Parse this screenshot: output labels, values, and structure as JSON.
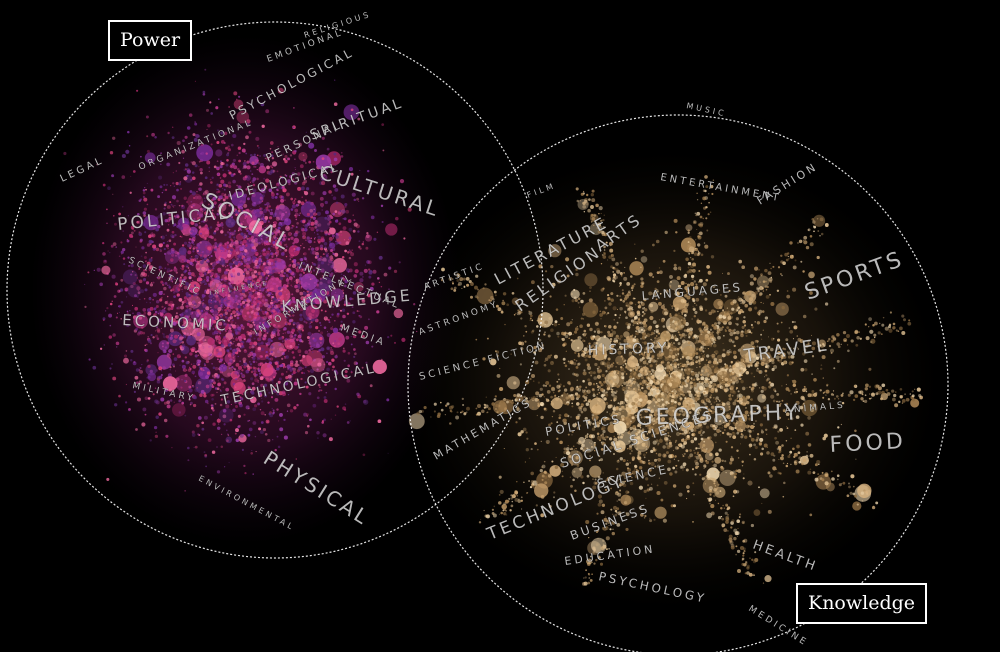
{
  "networks": [
    {
      "id": "power",
      "title": "Power",
      "color": "#d0407a",
      "labels": [
        "POLITICAL",
        "SOCIAL",
        "CULTURAL",
        "SPIRITUAL",
        "PERSONAL",
        "IDEOLOGICAL",
        "PSYCHOLOGICAL",
        "EMOTIONAL",
        "RELIGIOUS",
        "ORGANIZATIONAL",
        "LEGAL",
        "ECONOMIC",
        "KNOWLEDGE",
        "INTELLECTUAL",
        "MEDIA",
        "SCIENTIFIC",
        "INFLUENCE",
        "TECHNOLOGICAL",
        "MILITARY",
        "PHYSICAL",
        "ENVIRONMENTAL",
        "INFORMATIONAL"
      ]
    },
    {
      "id": "knowledge",
      "title": "Knowledge",
      "color": "#d8b380",
      "labels": [
        "MUSIC",
        "ENTERTAINMENT",
        "FASHION",
        "ARTS",
        "FILM",
        "LITERATURE",
        "RELIGION",
        "LANGUAGES",
        "SPORTS",
        "HISTORY",
        "TRAVEL",
        "GEOGRAPHY",
        "ANIMALS",
        "FOOD",
        "POLITICS",
        "SOCIAL SCIENCES",
        "MATHEMATICS",
        "SCIENCE FICTION",
        "ASTRONOMY",
        "ARTISTIC",
        "SCIENCE",
        "TECHNOLOGY",
        "BUSINESS",
        "EDUCATION",
        "PSYCHOLOGY",
        "HEALTH",
        "MEDICINE"
      ]
    }
  ]
}
